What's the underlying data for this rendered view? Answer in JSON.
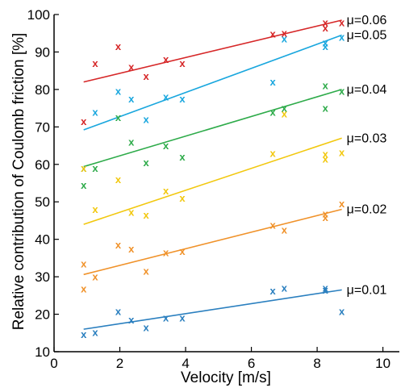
{
  "chart_data": {
    "type": "scatter",
    "title": "",
    "xlabel": "Velocity [m/s]",
    "ylabel": "Relative contribution of Coulomb friction [%]",
    "xlim": [
      0,
      10.5
    ],
    "ylim": [
      10,
      100
    ],
    "xticks": [
      0,
      2,
      4,
      6,
      8,
      10
    ],
    "yticks": [
      10,
      20,
      30,
      40,
      50,
      60,
      70,
      80,
      90,
      100
    ],
    "marker_glyph": "x",
    "grid": false,
    "series": [
      {
        "name": "μ=0.06",
        "color": "#d62728",
        "points": [
          [
            0.9,
            71.5
          ],
          [
            1.25,
            87
          ],
          [
            1.95,
            91.5
          ],
          [
            2.35,
            86
          ],
          [
            2.8,
            83.5
          ],
          [
            3.4,
            88
          ],
          [
            3.9,
            87
          ],
          [
            6.65,
            94.8
          ],
          [
            7.0,
            95
          ],
          [
            8.25,
            96.5
          ],
          [
            8.25,
            97.8
          ],
          [
            8.75,
            97.8
          ]
        ],
        "fit": [
          [
            0.9,
            82
          ],
          [
            8.75,
            98.5
          ]
        ]
      },
      {
        "name": "μ=0.05",
        "color": "#1aa7de",
        "points": [
          [
            0.9,
            59
          ],
          [
            1.25,
            74
          ],
          [
            1.95,
            79.5
          ],
          [
            2.35,
            77.5
          ],
          [
            2.8,
            72
          ],
          [
            3.4,
            78
          ],
          [
            3.9,
            77.5
          ],
          [
            6.65,
            82
          ],
          [
            7.0,
            93.5
          ],
          [
            8.25,
            91.5
          ],
          [
            8.25,
            92.5
          ],
          [
            8.75,
            94
          ]
        ],
        "fit": [
          [
            0.9,
            69.2
          ],
          [
            8.75,
            94.5
          ]
        ]
      },
      {
        "name": "μ=0.04",
        "color": "#2eab4a",
        "points": [
          [
            0.9,
            54.5
          ],
          [
            1.25,
            59
          ],
          [
            1.95,
            72.5
          ],
          [
            2.35,
            66
          ],
          [
            2.8,
            60.5
          ],
          [
            3.4,
            65
          ],
          [
            3.9,
            62
          ],
          [
            6.65,
            74
          ],
          [
            7.0,
            75
          ],
          [
            8.25,
            75
          ],
          [
            8.25,
            81
          ],
          [
            8.75,
            79.5
          ]
        ],
        "fit": [
          [
            0.9,
            59.4
          ],
          [
            8.75,
            80
          ]
        ]
      },
      {
        "name": "μ=0.03",
        "color": "#f2c80f",
        "points": [
          [
            0.9,
            59
          ],
          [
            1.25,
            48
          ],
          [
            1.95,
            56
          ],
          [
            2.35,
            47.2
          ],
          [
            2.8,
            46.5
          ],
          [
            3.4,
            53
          ],
          [
            3.9,
            51
          ],
          [
            6.65,
            63
          ],
          [
            7.0,
            73.5
          ],
          [
            8.25,
            61.5
          ],
          [
            8.25,
            62.8
          ],
          [
            8.75,
            63.2
          ]
        ],
        "fit": [
          [
            0.9,
            44
          ],
          [
            8.75,
            67
          ]
        ]
      },
      {
        "name": "μ=0.02",
        "color": "#f0922a",
        "points": [
          [
            0.9,
            26.8
          ],
          [
            0.9,
            33.5
          ],
          [
            1.25,
            30
          ],
          [
            1.95,
            38.5
          ],
          [
            2.35,
            37.5
          ],
          [
            2.8,
            31.5
          ],
          [
            3.4,
            36.5
          ],
          [
            3.9,
            36.8
          ],
          [
            6.65,
            43.8
          ],
          [
            7.0,
            42.5
          ],
          [
            8.25,
            45.8
          ],
          [
            8.25,
            46.8
          ],
          [
            8.75,
            49.5
          ]
        ],
        "fit": [
          [
            0.9,
            30.6
          ],
          [
            8.75,
            48
          ]
        ]
      },
      {
        "name": "μ=0.01",
        "color": "#2a7fbf",
        "points": [
          [
            0.9,
            14.6
          ],
          [
            1.25,
            15.2
          ],
          [
            1.95,
            20.8
          ],
          [
            2.35,
            18.5
          ],
          [
            2.8,
            16.5
          ],
          [
            3.4,
            19
          ],
          [
            3.9,
            19
          ],
          [
            6.65,
            26.3
          ],
          [
            7.0,
            27
          ],
          [
            8.25,
            26.5
          ],
          [
            8.25,
            27
          ],
          [
            8.75,
            20.8
          ]
        ],
        "fit": [
          [
            0.9,
            16
          ],
          [
            8.75,
            26.5
          ]
        ]
      }
    ]
  }
}
